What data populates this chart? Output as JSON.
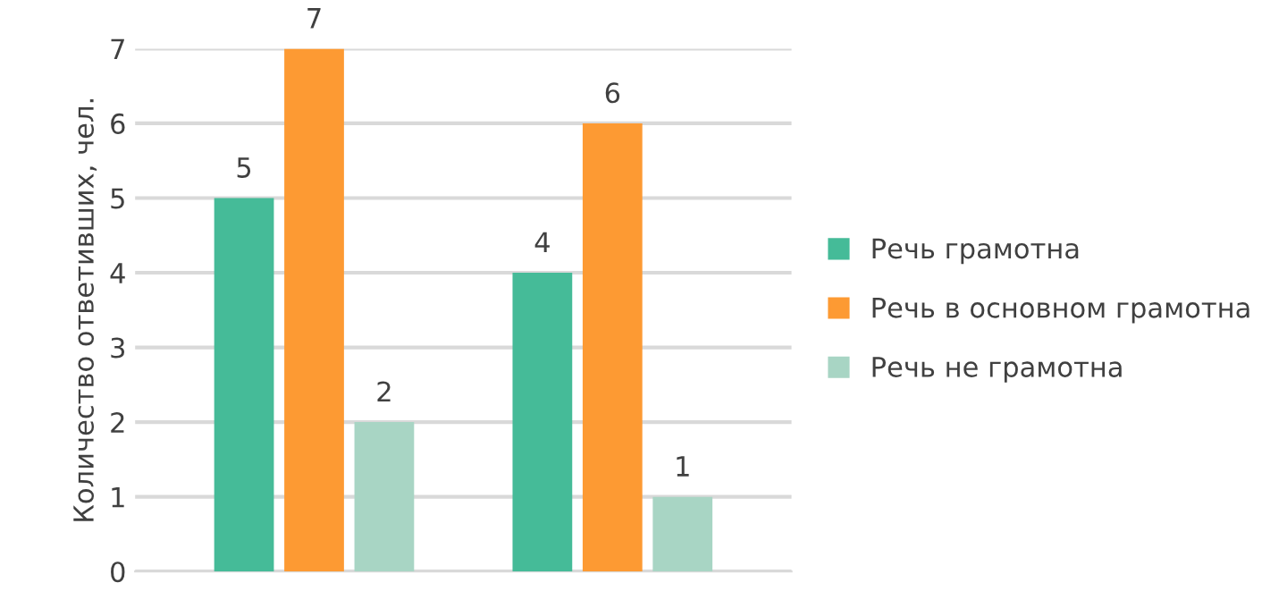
{
  "chart_data": {
    "type": "bar",
    "ylabel": "Количество ответивших, чел.",
    "categories": [
      null,
      null
    ],
    "series": [
      {
        "name": "Речь грамотна",
        "color": "#45bb98",
        "values": [
          5,
          4
        ]
      },
      {
        "name": "Речь в основном грамотна",
        "color": "#fd9a33",
        "values": [
          7,
          6
        ]
      },
      {
        "name": "Речь не грамотна",
        "color": "#a8d5c4",
        "values": [
          2,
          1
        ]
      }
    ],
    "ylim": [
      0,
      7
    ],
    "yticks": [
      0,
      1,
      2,
      3,
      4,
      5,
      6,
      7
    ],
    "grid": "y",
    "legend": "right",
    "data_labels": true
  }
}
